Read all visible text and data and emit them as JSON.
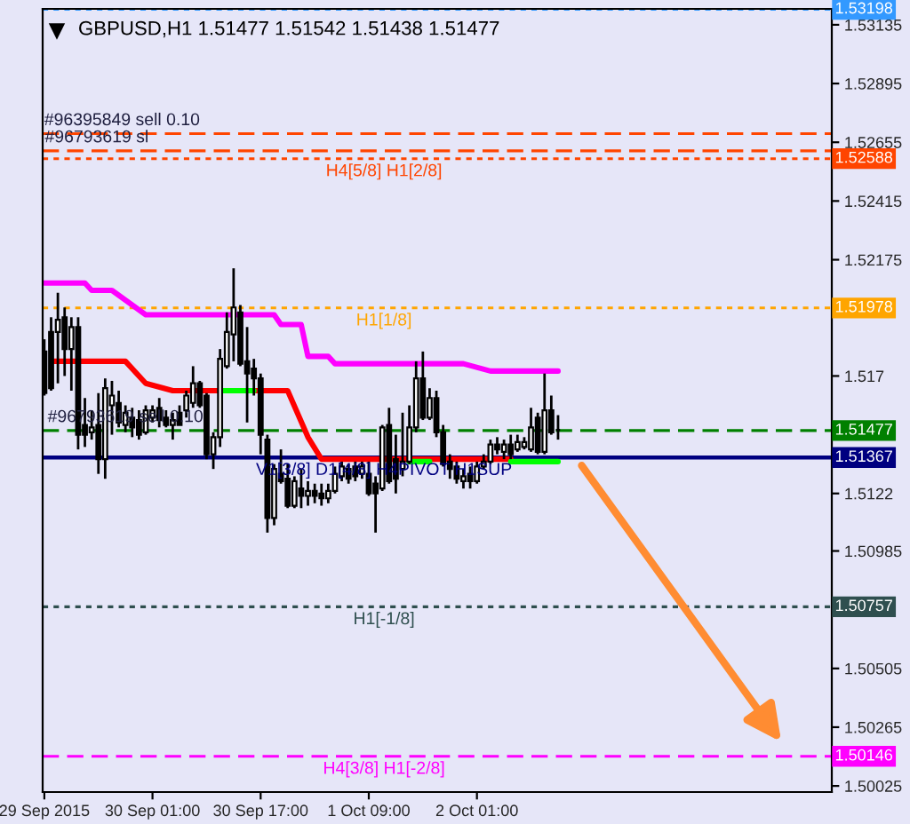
{
  "chart_data": {
    "type": "candlestick",
    "title": "GBPUSD,H1 1.51477 1.51542 1.51438 1.51477",
    "x": [
      "2015-09-29T09:00",
      "2015-09-29T10:00",
      "2015-09-29T11:00",
      "2015-09-29T12:00",
      "2015-09-29T13:00",
      "2015-09-29T14:00",
      "2015-09-29T15:00",
      "2015-09-29T16:00",
      "2015-09-29T17:00",
      "2015-09-29T18:00",
      "2015-09-29T19:00",
      "2015-09-29T20:00",
      "2015-09-29T21:00",
      "2015-09-29T22:00",
      "2015-09-29T23:00",
      "2015-09-30T00:00",
      "2015-09-30T01:00",
      "2015-09-30T02:00",
      "2015-09-30T03:00",
      "2015-09-30T04:00",
      "2015-09-30T05:00",
      "2015-09-30T06:00",
      "2015-09-30T07:00",
      "2015-09-30T08:00",
      "2015-09-30T09:00",
      "2015-09-30T10:00",
      "2015-09-30T11:00",
      "2015-09-30T12:00",
      "2015-09-30T13:00",
      "2015-09-30T14:00",
      "2015-09-30T15:00",
      "2015-09-30T16:00",
      "2015-09-30T17:00",
      "2015-09-30T18:00",
      "2015-09-30T19:00",
      "2015-09-30T20:00",
      "2015-09-30T21:00",
      "2015-09-30T22:00",
      "2015-09-30T23:00",
      "2015-10-01T00:00",
      "2015-10-01T01:00",
      "2015-10-01T02:00",
      "2015-10-01T03:00",
      "2015-10-01T04:00",
      "2015-10-01T05:00",
      "2015-10-01T06:00",
      "2015-10-01T07:00",
      "2015-10-01T08:00",
      "2015-10-01T09:00",
      "2015-10-01T10:00",
      "2015-10-01T11:00",
      "2015-10-01T12:00",
      "2015-10-01T13:00",
      "2015-10-01T14:00",
      "2015-10-01T15:00",
      "2015-10-01T16:00",
      "2015-10-01T17:00",
      "2015-10-01T18:00",
      "2015-10-01T19:00",
      "2015-10-01T20:00",
      "2015-10-01T21:00",
      "2015-10-01T22:00",
      "2015-10-01T23:00",
      "2015-10-02T00:00",
      "2015-10-02T01:00",
      "2015-10-02T02:00",
      "2015-10-02T03:00",
      "2015-10-02T04:00",
      "2015-10-02T05:00",
      "2015-10-02T06:00",
      "2015-10-02T07:00",
      "2015-10-02T08:00",
      "2015-10-02T09:00",
      "2015-10-02T10:00",
      "2015-10-02T11:00",
      "2015-10-02T12:00",
      "2015-10-02T13:00"
    ],
    "ohlc": [
      [
        1.518,
        1.5185,
        1.5162,
        1.5163
      ],
      [
        1.5188,
        1.5194,
        1.5164,
        1.5165
      ],
      [
        1.5188,
        1.5204,
        1.5167,
        1.5193
      ],
      [
        1.5194,
        1.5198,
        1.517,
        1.5181
      ],
      [
        1.5181,
        1.5194,
        1.5164,
        1.519
      ],
      [
        1.519,
        1.5194,
        1.514,
        1.5146
      ],
      [
        1.515,
        1.5161,
        1.5141,
        1.5146
      ],
      [
        1.5147,
        1.5156,
        1.5144,
        1.5149
      ],
      [
        1.515,
        1.5163,
        1.513,
        1.5136
      ],
      [
        1.5136,
        1.5169,
        1.5128,
        1.5165
      ],
      [
        1.5158,
        1.5168,
        1.5146,
        1.5162
      ],
      [
        1.5159,
        1.5164,
        1.5149,
        1.5151
      ],
      [
        1.515,
        1.5158,
        1.5147,
        1.5155
      ],
      [
        1.5153,
        1.5157,
        1.5145,
        1.5149
      ],
      [
        1.5152,
        1.5156,
        1.5144,
        1.5146
      ],
      [
        1.5147,
        1.5158,
        1.5146,
        1.5156
      ],
      [
        1.5153,
        1.5158,
        1.5151,
        1.5156
      ],
      [
        1.5157,
        1.5161,
        1.5149,
        1.5152
      ],
      [
        1.5153,
        1.5156,
        1.5149,
        1.515
      ],
      [
        1.515,
        1.5155,
        1.5144,
        1.5152
      ],
      [
        1.5155,
        1.5158,
        1.515,
        1.515
      ],
      [
        1.5156,
        1.5164,
        1.5153,
        1.5162
      ],
      [
        1.5159,
        1.5174,
        1.5157,
        1.5167
      ],
      [
        1.5167,
        1.5168,
        1.5157,
        1.5158
      ],
      [
        1.5162,
        1.5163,
        1.5136,
        1.5138
      ],
      [
        1.5138,
        1.5147,
        1.5132,
        1.5145
      ],
      [
        1.5145,
        1.5181,
        1.5141,
        1.5177
      ],
      [
        1.5174,
        1.5196,
        1.5173,
        1.5188
      ],
      [
        1.5187,
        1.5214,
        1.5176,
        1.5198
      ],
      [
        1.5196,
        1.5199,
        1.5174,
        1.5175
      ],
      [
        1.5176,
        1.519,
        1.5151,
        1.5171
      ],
      [
        1.5173,
        1.5177,
        1.5162,
        1.5169
      ],
      [
        1.5169,
        1.5171,
        1.5138,
        1.5146
      ],
      [
        1.5144,
        1.5146,
        1.5106,
        1.5112
      ],
      [
        1.5112,
        1.5134,
        1.5109,
        1.5132
      ],
      [
        1.513,
        1.514,
        1.5126,
        1.5127
      ],
      [
        1.5128,
        1.5134,
        1.5116,
        1.5117
      ],
      [
        1.5117,
        1.5129,
        1.5116,
        1.5127
      ],
      [
        1.5124,
        1.5132,
        1.5116,
        1.5121
      ],
      [
        1.5121,
        1.5127,
        1.5117,
        1.5123
      ],
      [
        1.5123,
        1.5126,
        1.5118,
        1.5121
      ],
      [
        1.5122,
        1.5126,
        1.5117,
        1.512
      ],
      [
        1.512,
        1.5126,
        1.5118,
        1.5123
      ],
      [
        1.5123,
        1.5133,
        1.5122,
        1.513
      ],
      [
        1.5129,
        1.5135,
        1.5127,
        1.5133
      ],
      [
        1.5132,
        1.5134,
        1.5126,
        1.5128
      ],
      [
        1.5133,
        1.5135,
        1.5127,
        1.5129
      ],
      [
        1.513,
        1.5135,
        1.5128,
        1.5133
      ],
      [
        1.513,
        1.5135,
        1.5121,
        1.5122
      ],
      [
        1.5126,
        1.5129,
        1.5106,
        1.5122
      ],
      [
        1.5124,
        1.515,
        1.5123,
        1.5149
      ],
      [
        1.515,
        1.5157,
        1.5126,
        1.5127
      ],
      [
        1.5136,
        1.5146,
        1.5122,
        1.5128
      ],
      [
        1.5132,
        1.5155,
        1.5129,
        1.5135
      ],
      [
        1.5135,
        1.5158,
        1.5134,
        1.5149
      ],
      [
        1.5149,
        1.5176,
        1.5147,
        1.5169
      ],
      [
        1.5169,
        1.518,
        1.5152,
        1.5153
      ],
      [
        1.5153,
        1.5165,
        1.5152,
        1.5161
      ],
      [
        1.5161,
        1.5164,
        1.5145,
        1.5147
      ],
      [
        1.5147,
        1.515,
        1.5133,
        1.5134
      ],
      [
        1.5135,
        1.5138,
        1.5128,
        1.5132
      ],
      [
        1.5133,
        1.5135,
        1.5126,
        1.5128
      ],
      [
        1.5127,
        1.5132,
        1.5124,
        1.5129
      ],
      [
        1.513,
        1.5133,
        1.5124,
        1.5127
      ],
      [
        1.5127,
        1.5135,
        1.5126,
        1.5133
      ],
      [
        1.5133,
        1.5138,
        1.5132,
        1.5135
      ],
      [
        1.5135,
        1.5144,
        1.5134,
        1.5142
      ],
      [
        1.5142,
        1.5145,
        1.5138,
        1.514
      ],
      [
        1.5139,
        1.5144,
        1.5136,
        1.5142
      ],
      [
        1.5142,
        1.5146,
        1.5136,
        1.5138
      ],
      [
        1.514,
        1.5146,
        1.5139,
        1.5143
      ],
      [
        1.5141,
        1.5145,
        1.514,
        1.5143
      ],
      [
        1.514,
        1.5157,
        1.5139,
        1.5149
      ],
      [
        1.5153,
        1.5155,
        1.5138,
        1.5139
      ],
      [
        1.5139,
        1.5171,
        1.5138,
        1.5156
      ],
      [
        1.5156,
        1.5162,
        1.5146,
        1.5147
      ],
      [
        1.5148,
        1.5154,
        1.5144,
        1.5148
      ]
    ],
    "series": [
      {
        "type": "line",
        "color": "#ff00ff",
        "x": [
          "2015-09-29T09:00",
          "2015-09-29T15:00",
          "2015-09-29T16:00",
          "2015-09-29T19:00",
          "2015-09-30T00:00",
          "2015-09-30T19:00",
          "2015-09-30T20:00",
          "2015-09-30T23:00",
          "2015-10-01T00:00",
          "2015-10-01T03:00",
          "2015-10-01T04:00",
          "2015-10-01T23:00",
          "2015-10-02T03:00",
          "2015-10-02T13:00"
        ],
        "values": [
          1.5208,
          1.5208,
          1.5205,
          1.5205,
          1.5195,
          1.5195,
          1.5191,
          1.5191,
          1.5178,
          1.5178,
          1.5175,
          1.5175,
          1.5172,
          1.5172
        ]
      },
      {
        "type": "line",
        "color": "#ff0000",
        "x": [
          "2015-09-29T10:30",
          "2015-09-29T21:00",
          "2015-09-30T00:00",
          "2015-09-30T04:00",
          "2015-09-30T21:00",
          "2015-10-01T00:00",
          "2015-10-01T02:00",
          "2015-10-02T06:00"
        ],
        "values": [
          1.5176,
          1.5176,
          1.5167,
          1.5164,
          1.5164,
          1.5145,
          1.5136,
          1.5136
        ]
      },
      {
        "type": "line",
        "color": "#00ff00",
        "x": [
          "2015-09-30T11:00",
          "2015-09-30T16:00",
          "2015-10-01T00:00",
          "2015-10-01T15:00",
          "2015-10-01T18:00",
          "2015-10-02T02:00",
          "2015-10-02T06:00",
          "2015-10-02T13:00"
        ],
        "values": [
          1.5164,
          1.5164,
          null,
          1.5135,
          1.5135,
          null,
          1.5135,
          1.5135
        ]
      }
    ],
    "ref_lines": [
      {
        "axis": "y",
        "value": 1.53198,
        "label": "1.53198",
        "color": "#3399ff",
        "line_style": "dotted"
      },
      {
        "axis": "y",
        "value": 1.5269,
        "color": "#ff4500",
        "line_style": "dashed"
      },
      {
        "axis": "y",
        "value": 1.5262,
        "color": "#ff4500",
        "line_style": "dashed"
      },
      {
        "axis": "y",
        "value": 1.52588,
        "label": "1.52588",
        "color": "#ff4500",
        "line_style": "dotted"
      },
      {
        "axis": "y",
        "value": 1.51978,
        "label": "1.51978",
        "color": "#ffa500",
        "line_style": "dotted"
      },
      {
        "axis": "y",
        "value": 1.51477,
        "label": "1.51477",
        "color": "#008000",
        "line_style": "dashed"
      },
      {
        "axis": "y",
        "value": 1.51367,
        "label": "1.51367",
        "color": "#000080",
        "line_style": "solid"
      },
      {
        "axis": "y",
        "value": 1.50757,
        "label": "1.50757",
        "color": "#2f4f4f",
        "line_style": "dotted"
      },
      {
        "axis": "y",
        "value": 1.50146,
        "label": "1.50146",
        "color": "#ff00ff",
        "line_style": "dashed"
      }
    ],
    "annotations": [
      {
        "text": "#96395849 sell 0.10",
        "x": "2015-09-29T20:30",
        "y": 1.5269
      },
      {
        "text": "#96793619 sl",
        "x": "2015-09-29T16:45",
        "y": 1.5262
      },
      {
        "text": "H4[5/8] H1[2/8]",
        "x": "2015-10-01T11:15",
        "y": 1.52588
      },
      {
        "text": "H1[1/8]",
        "x": "2015-10-01T11:15",
        "y": 1.51978
      },
      {
        "text": "#96793619 sell 0.10",
        "x": "2015-09-29T21:00",
        "y": 1.51477
      },
      {
        "text": "V1[3/8] D1[4/8] H4PIVOT H1SUP",
        "x": "2015-10-01T11:15",
        "y": 1.51367
      },
      {
        "text": "H1[-1/8]",
        "x": "2015-10-01T11:15",
        "y": 1.50757
      },
      {
        "text": "H4[3/8] H1[-2/8]",
        "x": "2015-10-01T11:15",
        "y": 1.50146
      }
    ],
    "xlim": [
      "2015-09-29T08:45",
      "2015-10-04T05:30"
    ],
    "xticks": [
      {
        "value": "2015-09-29T09:00",
        "label": "29 Sep 2015"
      },
      {
        "value": "2015-09-30T01:00",
        "label": "30 Sep 01:00"
      },
      {
        "value": "2015-09-30T17:00",
        "label": "30 Sep 17:00"
      },
      {
        "value": "2015-10-01T09:00",
        "label": "1 Oct 09:00"
      },
      {
        "value": "2015-10-02T01:00",
        "label": "2 Oct 01:00"
      }
    ],
    "ylim": [
      1.5,
      1.532
    ],
    "yticks": [
      1.53135,
      1.52895,
      1.52655,
      1.52415,
      1.52175,
      1.517,
      1.5122,
      1.50985,
      1.50505,
      1.50265,
      1.50025
    ],
    "grid": false,
    "legend": false
  }
}
